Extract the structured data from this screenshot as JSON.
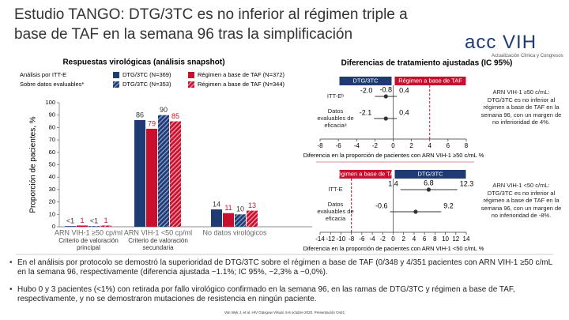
{
  "title": "Estudio TANGO: DTG/3TC es no inferior al régimen triple a base de TAF en la semana 96 tras la simplificación",
  "logo": {
    "main": "acc VIH",
    "sub": "Actualización Clínica y Congresos"
  },
  "bullets": [
    "En el análisis por protocolo se demostró la superioridad de DTG/3TC sobre el régimen a base de TAF (0/348 y 4/351 pacientes con ARN VIH-1 ≥50 c/mL en la semana 96, respectivamente (diferencia ajustada −1.1%; IC 95%, −2,3% a −0,0%).",
    "Hubo 0 y 3 pacientes (<1%) con retirada por fallo virológico confirmado en la semana 96, en las ramas de DTG/3TC y régimen a base de TAF, respectivamente, y no se demostraron mutaciones de resistencia en ningún paciente."
  ],
  "footer": "Van Wyk J, et al. HIV Glasgow Virtual. 5-8 octubre 2020. Presentación O441",
  "chart_data": [
    {
      "type": "bar",
      "title": "Respuestas virológicas (análisis snapshot)",
      "ylabel": "Proporción de pacientes, %",
      "legend_groups": [
        "Análisis por ITT-E",
        "Sobre datos evaluables*"
      ],
      "categories": [
        "ARN VIH-1 ≥50 cp/ml",
        "ARN VIH-1 <50 cp/ml",
        "No datos virológicos"
      ],
      "category_notes": [
        "Criterio de valoración principal",
        "Criterio de valoración secundaria"
      ],
      "series": [
        {
          "name": "DTG/3TC (N=369)",
          "color": "#1f3b73",
          "hatch": false,
          "values": [
            0.5,
            86,
            14
          ],
          "value_labels": [
            "<1",
            "86",
            "14"
          ]
        },
        {
          "name": "Régimen a base de TAF (N=372)",
          "color": "#c8102e",
          "hatch": false,
          "values": [
            1,
            79,
            11
          ],
          "value_labels": [
            "1",
            "79",
            "11"
          ]
        },
        {
          "name": "DTG/3TC (N=353)",
          "color": "#1f3b73",
          "hatch": true,
          "values": [
            0.5,
            90,
            10
          ],
          "value_labels": [
            "<1",
            "90",
            "10"
          ]
        },
        {
          "name": "Régimen a base de TAF (N=344)",
          "color": "#c8102e",
          "hatch": true,
          "values": [
            1,
            85,
            13
          ],
          "value_labels": [
            "1",
            "85",
            "13"
          ]
        }
      ],
      "ylim": [
        0,
        100
      ],
      "yticks": [
        0,
        10,
        20,
        30,
        40,
        50,
        60,
        70,
        80,
        90,
        100
      ]
    },
    {
      "type": "forest",
      "title": "Diferencias de tratamiento ajustadas (IC 95%)",
      "header_left": {
        "text": "DTG/3TC",
        "color": "#1f3b73"
      },
      "header_right": {
        "text": "Régimen a base de TAF",
        "color": "#c8102e"
      },
      "categories": [
        "ITT-Eᵇ",
        "Datos evaluables de eficaciaᵃ"
      ],
      "values": [
        -0.8,
        -0.8
      ],
      "value_labels": [
        "-0.8",
        null
      ],
      "lower": [
        -2.0,
        -2.1
      ],
      "lower_labels": [
        "-2.0",
        "-2.1"
      ],
      "upper": [
        0.4,
        0.4
      ],
      "upper_labels": [
        "0.4",
        "0.4"
      ],
      "margin": 4,
      "xlabel": "Diferencia en la proporción de pacientes con ARN VIH-1 ≥50 c/mL %",
      "note": "ARN VIH-1 ≥50 c/mL: DTG/3TC es no inferior al régimen a base de TAF en la semana 96, con un margen de no inferioridad de 4%.",
      "xlim": [
        -8,
        8
      ],
      "xticks": [
        -8,
        -6,
        -4,
        -2,
        0,
        2,
        4,
        6,
        8
      ]
    },
    {
      "type": "forest",
      "header_left": {
        "text": "Régimen a base de TAF",
        "color": "#c8102e"
      },
      "header_right": {
        "text": "DTG/3TC",
        "color": "#1f3b73"
      },
      "categories": [
        "ITT-E",
        "Datos evaluables de eficacia"
      ],
      "values": [
        6.8,
        4.3
      ],
      "value_labels": [
        "6.8",
        null
      ],
      "lower": [
        1.4,
        -0.6
      ],
      "lower_labels": [
        "1.4",
        "-0.6"
      ],
      "upper": [
        12.3,
        9.2
      ],
      "upper_labels": [
        "12.3",
        "9.2"
      ],
      "margin": -8,
      "xlabel": "Diferencia en la proporción de pacientes con ARN VIH-1 <50 c/mL %",
      "note": "ARN VIH-1 <50 c/mL: DTG/3TC es no inferior al régimen a base de TAF en la semana 96, con un margen de no inferioridad de -8%.",
      "xlim": [
        -14,
        14
      ],
      "xticks": [
        -14,
        -12,
        -10,
        -8,
        -6,
        -4,
        -2,
        0,
        2,
        4,
        6,
        8,
        10,
        12,
        14
      ]
    }
  ]
}
